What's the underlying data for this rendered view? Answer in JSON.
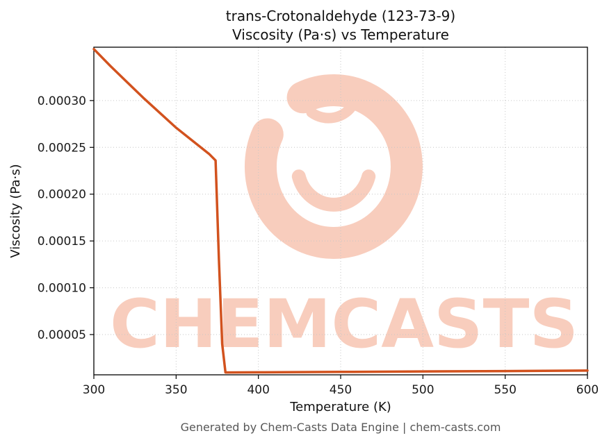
{
  "figure": {
    "title_line1": "trans-Crotonaldehyde (123-73-9)",
    "title_line2": "Viscosity (Pa·s) vs Temperature",
    "footer": "Generated by Chem-Casts Data Engine | chem-casts.com",
    "watermark_text": "CHEMCASTS",
    "colors": {
      "line": "#d2521e",
      "watermark": "#f8cdbd",
      "grid": "#c6c6c6",
      "footer_text": "#575757"
    }
  },
  "chart_data": {
    "type": "line",
    "title": "trans-Crotonaldehyde (123-73-9) — Viscosity (Pa·s) vs Temperature",
    "xlabel": "Temperature (K)",
    "ylabel": "Viscosity (Pa·s)",
    "xlim": [
      300,
      600
    ],
    "ylim": [
      7e-06,
      0.000357
    ],
    "grid": "dotted",
    "legend": "none",
    "x_ticks": [
      {
        "value": 300,
        "label": "300"
      },
      {
        "value": 350,
        "label": "350"
      },
      {
        "value": 400,
        "label": "400"
      },
      {
        "value": 450,
        "label": "450"
      },
      {
        "value": 500,
        "label": "500"
      },
      {
        "value": 550,
        "label": "550"
      },
      {
        "value": 600,
        "label": "600"
      }
    ],
    "y_ticks": [
      {
        "value": 5e-05,
        "label": "0.00005"
      },
      {
        "value": 0.0001,
        "label": "0.00010"
      },
      {
        "value": 0.00015,
        "label": "0.00015"
      },
      {
        "value": 0.0002,
        "label": "0.00020"
      },
      {
        "value": 0.00025,
        "label": "0.00025"
      },
      {
        "value": 0.0003,
        "label": "0.00030"
      }
    ],
    "series": [
      {
        "name": "viscosity",
        "x": [
          300,
          310,
          320,
          330,
          340,
          350,
          360,
          370,
          374,
          376,
          378,
          380,
          400,
          450,
          500,
          550,
          600
        ],
        "y": [
          0.000355,
          0.000337,
          0.00032,
          0.000303,
          0.000287,
          0.000271,
          0.000257,
          0.000243,
          0.000236,
          0.00013,
          4e-05,
          9.5e-06,
          9.7e-06,
          1.01e-05,
          1.06e-05,
          1.1e-05,
          1.15e-05
        ]
      }
    ]
  }
}
